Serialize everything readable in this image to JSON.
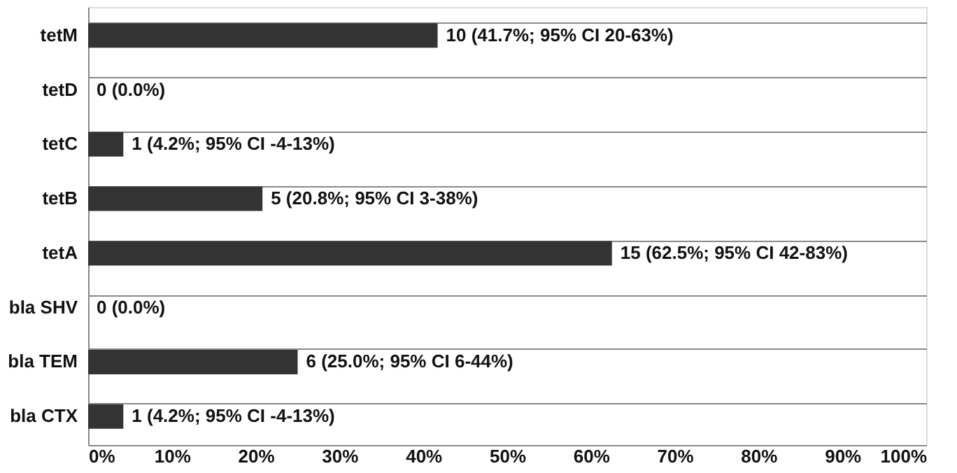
{
  "chart_data": {
    "type": "bar",
    "orientation": "horizontal",
    "categories": [
      "tetM",
      "tetD",
      "tetC",
      "tetB",
      "tetA",
      "bla SHV",
      "bla TEM",
      "bla CTX"
    ],
    "values": [
      41.7,
      0.0,
      4.2,
      20.8,
      62.5,
      0.0,
      25.0,
      4.2
    ],
    "color": "#333333",
    "value_labels": [
      "10 (41.7%; 95% CI 20-63%)",
      "0 (0.0%)",
      "1 (4.2%; 95% CI -4-13%)",
      "5 (20.8%; 95% CI 3-38%)",
      "15 (62.5%; 95% CI 42-83%)",
      "0 (0.0%)",
      "6 (25.0%; 95% CI 6-44%)",
      "1 (4.2%; 95% CI -4-13%)"
    ],
    "xlim": [
      0,
      100
    ],
    "xticks": [
      {
        "value": 0,
        "label": "0%"
      },
      {
        "value": 10,
        "label": "10%"
      },
      {
        "value": 20,
        "label": "20%"
      },
      {
        "value": 30,
        "label": "30%"
      },
      {
        "value": 40,
        "label": "40%"
      },
      {
        "value": 50,
        "label": "50%"
      },
      {
        "value": 60,
        "label": "60%"
      },
      {
        "value": 70,
        "label": "70%"
      },
      {
        "value": 80,
        "label": "80%"
      },
      {
        "value": 90,
        "label": "90%"
      },
      {
        "value": 100,
        "label": "100%"
      }
    ],
    "grid": "y"
  }
}
